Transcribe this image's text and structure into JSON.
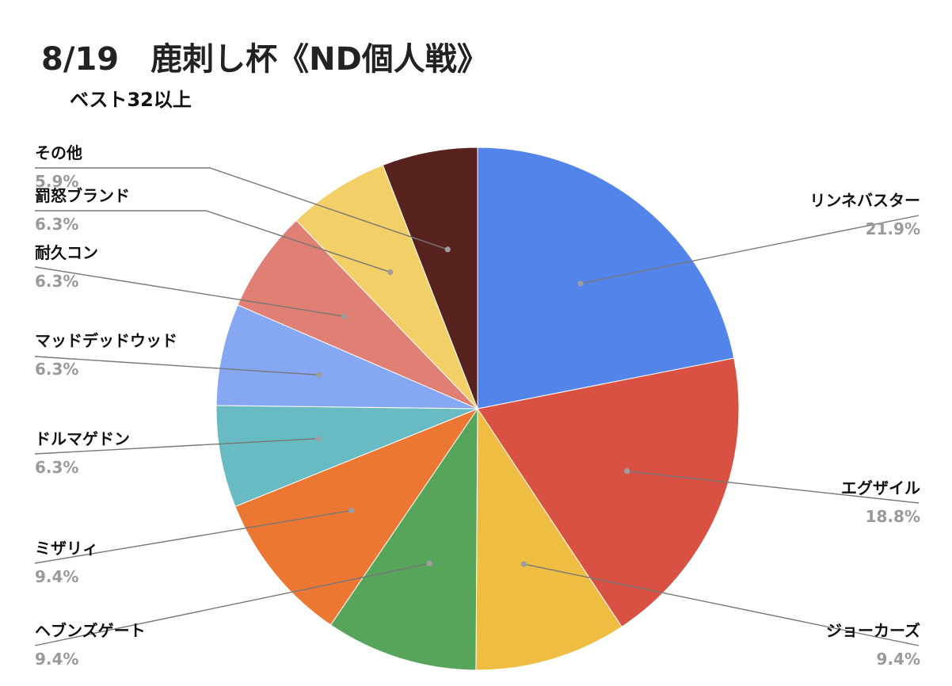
{
  "chart_data": {
    "type": "pie",
    "title": "8/19　鹿刺し杯《ND個人戦》",
    "subtitle": "ベスト32以上",
    "slices": [
      {
        "label": "リンネバスター",
        "value": 21.9,
        "pct_label": "21.9%",
        "color": "#5384ea"
      },
      {
        "label": "エグザイル",
        "value": 18.8,
        "pct_label": "18.8%",
        "color": "#d85143"
      },
      {
        "label": "ジョーカーズ",
        "value": 9.4,
        "pct_label": "9.4%",
        "color": "#efbd42"
      },
      {
        "label": "ヘブンズゲート",
        "value": 9.4,
        "pct_label": "9.4%",
        "color": "#57a45b"
      },
      {
        "label": "ミザリィ",
        "value": 9.4,
        "pct_label": "9.4%",
        "color": "#ec7733"
      },
      {
        "label": "ドルマゲドン",
        "value": 6.3,
        "pct_label": "6.3%",
        "color": "#68bac3"
      },
      {
        "label": "マッドデッドウッド",
        "value": 6.3,
        "pct_label": "6.3%",
        "color": "#86a7f1"
      },
      {
        "label": "耐久コン",
        "value": 6.3,
        "pct_label": "6.3%",
        "color": "#e07f74"
      },
      {
        "label": "罰怒ブランド",
        "value": 6.3,
        "pct_label": "6.3%",
        "color": "#f3cf68"
      },
      {
        "label": "その他",
        "value": 5.9,
        "pct_label": "5.9%",
        "color": "#58231e"
      }
    ]
  }
}
